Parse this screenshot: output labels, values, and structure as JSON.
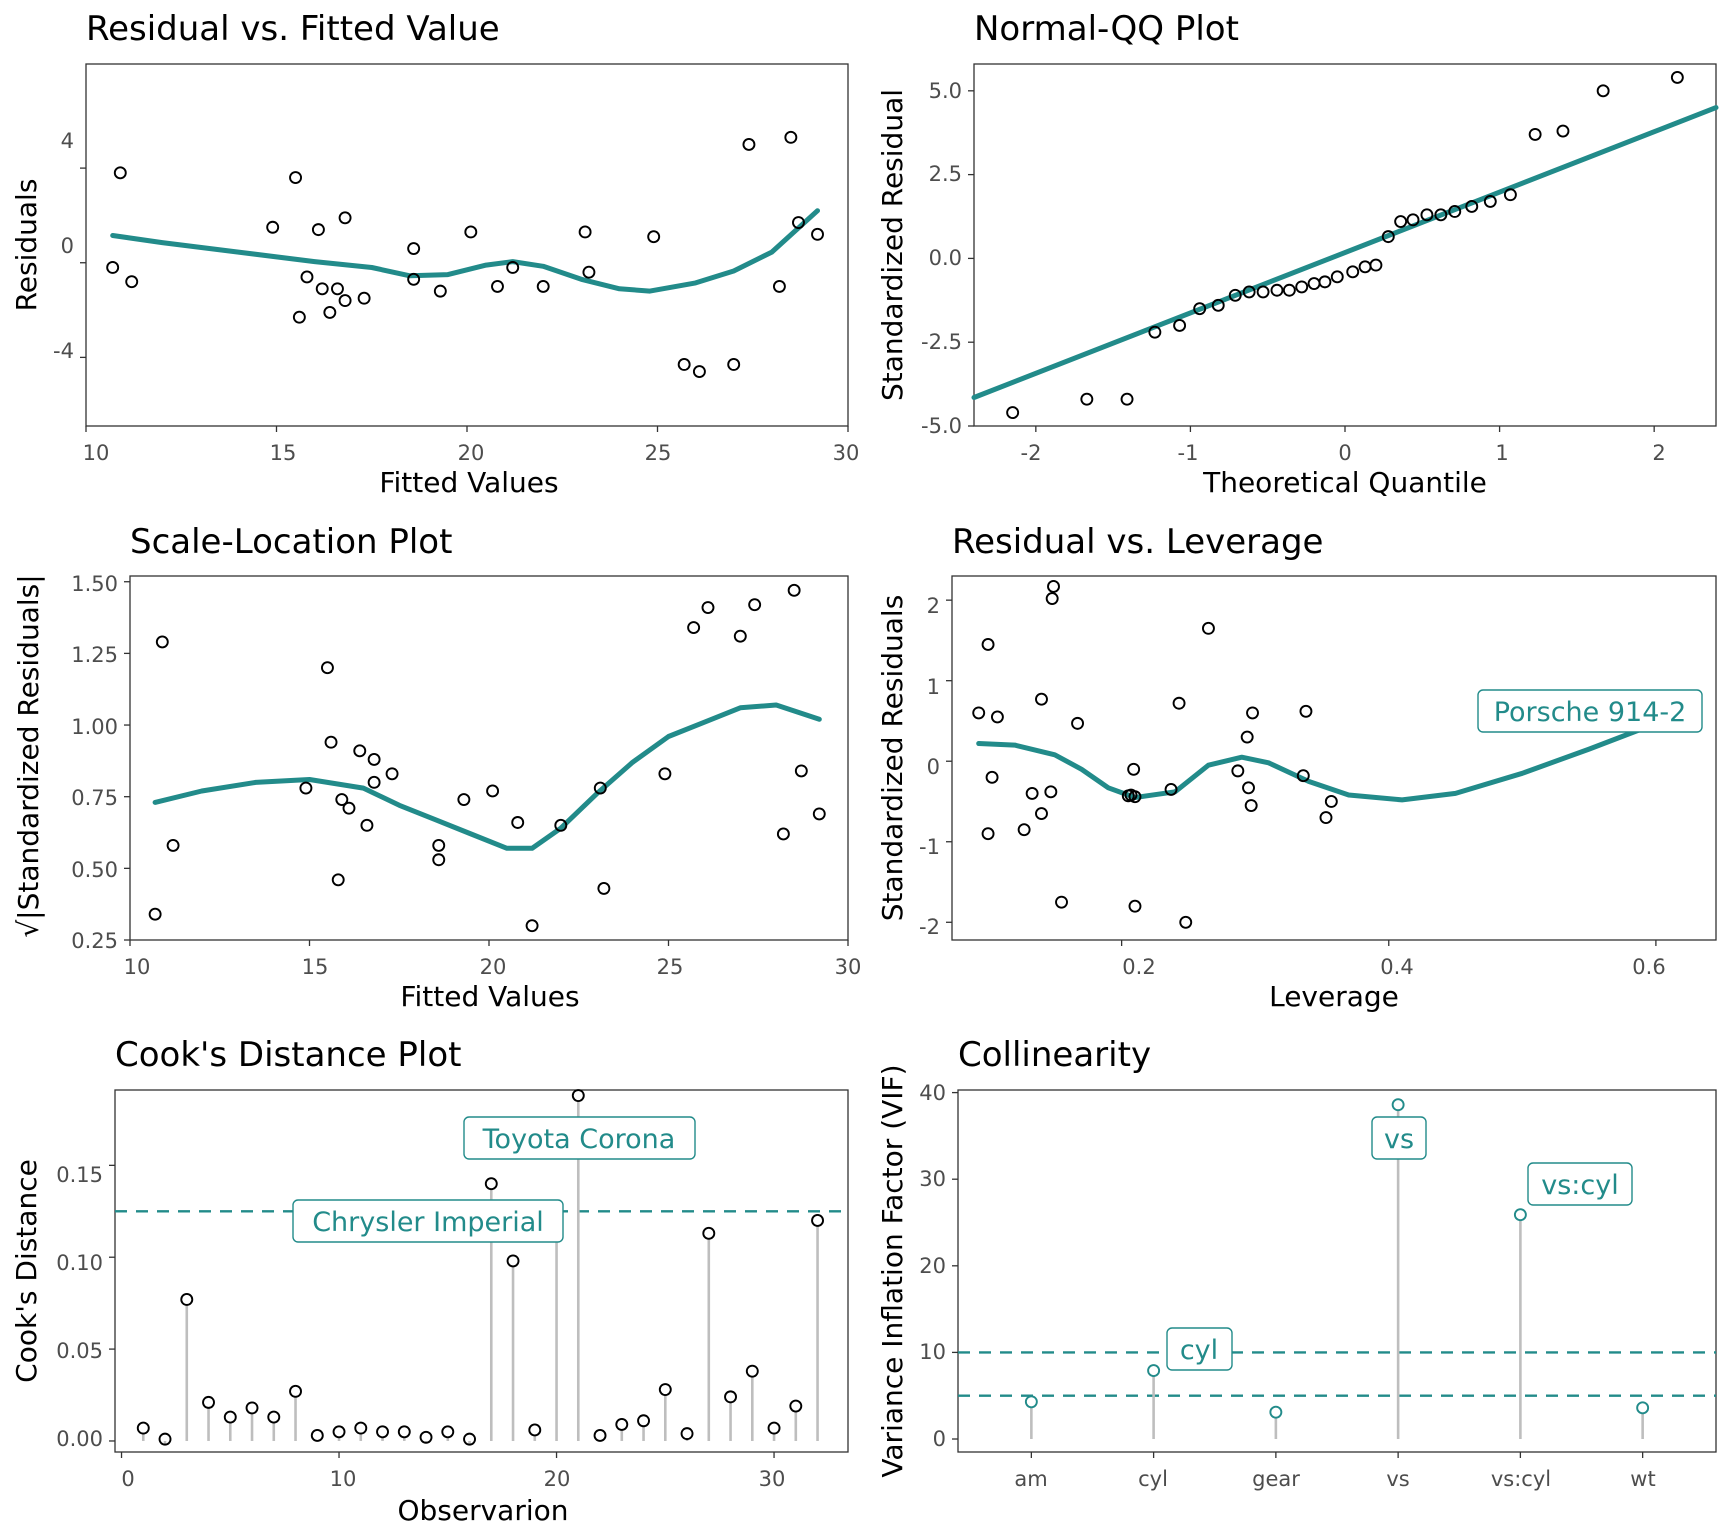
{
  "colors": {
    "accent": "#228b8a",
    "stem": "#bebebe",
    "point": "#000000",
    "frame": "#333333",
    "tick_text": "#4d4d4d"
  },
  "chart_data": [
    {
      "type": "scatter",
      "title": "Residual vs. Fitted Value",
      "xlabel": "Fitted Values",
      "ylabel": "Residuals",
      "xlim": [
        10,
        30
      ],
      "ylim": [
        -6.9,
        8.4
      ],
      "xticks": [
        "10",
        "15",
        "20",
        "25",
        "30"
      ],
      "yticks": [
        "-4",
        "0",
        "4"
      ],
      "points": [
        [
          10.7,
          -0.2
        ],
        [
          10.9,
          3.8
        ],
        [
          11.2,
          -0.8
        ],
        [
          14.9,
          1.5
        ],
        [
          15.5,
          3.6
        ],
        [
          15.6,
          -2.3
        ],
        [
          15.8,
          -0.6
        ],
        [
          16.1,
          1.4
        ],
        [
          16.2,
          -1.1
        ],
        [
          16.4,
          -2.1
        ],
        [
          16.6,
          -1.1
        ],
        [
          16.8,
          1.9
        ],
        [
          16.8,
          -1.6
        ],
        [
          17.3,
          -1.5
        ],
        [
          18.6,
          0.6
        ],
        [
          18.6,
          -0.7
        ],
        [
          19.3,
          -1.2
        ],
        [
          20.1,
          1.3
        ],
        [
          20.8,
          -1.0
        ],
        [
          21.2,
          -0.2
        ],
        [
          22.0,
          -1.0
        ],
        [
          23.1,
          1.3
        ],
        [
          23.2,
          -0.4
        ],
        [
          24.9,
          1.1
        ],
        [
          25.7,
          -4.3
        ],
        [
          26.1,
          -4.6
        ],
        [
          27.0,
          -4.3
        ],
        [
          27.4,
          5.0
        ],
        [
          28.2,
          -1.0
        ],
        [
          28.5,
          5.3
        ],
        [
          28.7,
          1.7
        ],
        [
          29.2,
          1.2
        ]
      ],
      "smooth": [
        [
          10.7,
          1.15
        ],
        [
          12,
          0.85
        ],
        [
          14,
          0.45
        ],
        [
          16,
          0.05
        ],
        [
          17.5,
          -0.2
        ],
        [
          18.5,
          -0.55
        ],
        [
          19.5,
          -0.5
        ],
        [
          20.5,
          -0.1
        ],
        [
          21.2,
          0.05
        ],
        [
          22,
          -0.15
        ],
        [
          23,
          -0.7
        ],
        [
          24,
          -1.1
        ],
        [
          24.8,
          -1.2
        ],
        [
          26,
          -0.85
        ],
        [
          27,
          -0.35
        ],
        [
          28,
          0.45
        ],
        [
          29.2,
          2.2
        ]
      ]
    },
    {
      "type": "scatter",
      "title": "Normal-QQ Plot",
      "xlabel": "Theoretical Quantile",
      "ylabel": "Standardized Residual",
      "xlim": [
        -2.4,
        2.4
      ],
      "ylim": [
        -5.0,
        5.8
      ],
      "xticks": [
        "-2",
        "-1",
        "0",
        "1",
        "2"
      ],
      "yticks": [
        "-5.0",
        "-2.5",
        "0.0",
        "2.5",
        "5.0"
      ],
      "points": [
        [
          -2.15,
          -4.6
        ],
        [
          -1.67,
          -4.2
        ],
        [
          -1.41,
          -4.2
        ],
        [
          -1.23,
          -2.2
        ],
        [
          -1.07,
          -2.0
        ],
        [
          -0.94,
          -1.5
        ],
        [
          -0.82,
          -1.4
        ],
        [
          -0.71,
          -1.1
        ],
        [
          -0.62,
          -1.0
        ],
        [
          -0.53,
          -1.0
        ],
        [
          -0.44,
          -0.95
        ],
        [
          -0.36,
          -0.95
        ],
        [
          -0.28,
          -0.85
        ],
        [
          -0.2,
          -0.75
        ],
        [
          -0.13,
          -0.7
        ],
        [
          -0.05,
          -0.55
        ],
        [
          0.05,
          -0.4
        ],
        [
          0.13,
          -0.25
        ],
        [
          0.2,
          -0.2
        ],
        [
          0.28,
          0.65
        ],
        [
          0.36,
          1.1
        ],
        [
          0.44,
          1.15
        ],
        [
          0.53,
          1.3
        ],
        [
          0.62,
          1.3
        ],
        [
          0.71,
          1.4
        ],
        [
          0.82,
          1.55
        ],
        [
          0.94,
          1.7
        ],
        [
          1.07,
          1.9
        ],
        [
          1.23,
          3.7
        ],
        [
          1.41,
          3.8
        ],
        [
          1.67,
          5.0
        ],
        [
          2.15,
          5.4
        ]
      ],
      "line": [
        [
          -2.4,
          -4.15
        ],
        [
          2.4,
          4.5
        ]
      ]
    },
    {
      "type": "scatter",
      "title": "Scale-Location Plot",
      "xlabel": "Fitted Values",
      "ylabel": "√|Standardized Residuals|",
      "xlim": [
        10,
        30
      ],
      "ylim": [
        0.25,
        1.52
      ],
      "xticks": [
        "10",
        "15",
        "20",
        "25",
        "30"
      ],
      "yticks": [
        "0.25",
        "0.50",
        "0.75",
        "1.00",
        "1.25",
        "1.50"
      ],
      "points": [
        [
          10.7,
          0.34
        ],
        [
          10.9,
          1.29
        ],
        [
          11.2,
          0.58
        ],
        [
          14.9,
          0.78
        ],
        [
          15.5,
          1.2
        ],
        [
          15.6,
          0.94
        ],
        [
          15.8,
          0.46
        ],
        [
          15.9,
          0.74
        ],
        [
          16.1,
          0.71
        ],
        [
          16.4,
          0.91
        ],
        [
          16.6,
          0.65
        ],
        [
          16.8,
          0.88
        ],
        [
          16.8,
          0.8
        ],
        [
          17.3,
          0.83
        ],
        [
          18.6,
          0.58
        ],
        [
          18.6,
          0.53
        ],
        [
          19.3,
          0.74
        ],
        [
          20.1,
          0.77
        ],
        [
          20.8,
          0.66
        ],
        [
          21.2,
          0.3
        ],
        [
          22.0,
          0.65
        ],
        [
          23.1,
          0.78
        ],
        [
          23.2,
          0.43
        ],
        [
          24.9,
          0.83
        ],
        [
          25.7,
          1.34
        ],
        [
          26.1,
          1.41
        ],
        [
          27.0,
          1.31
        ],
        [
          27.4,
          1.42
        ],
        [
          28.2,
          0.62
        ],
        [
          28.5,
          1.47
        ],
        [
          28.7,
          0.84
        ],
        [
          29.2,
          0.69
        ]
      ],
      "smooth": [
        [
          10.7,
          0.73
        ],
        [
          12,
          0.77
        ],
        [
          13.5,
          0.8
        ],
        [
          15,
          0.81
        ],
        [
          16.5,
          0.78
        ],
        [
          17.5,
          0.72
        ],
        [
          18.5,
          0.67
        ],
        [
          19.5,
          0.62
        ],
        [
          20.5,
          0.57
        ],
        [
          21.2,
          0.57
        ],
        [
          22,
          0.64
        ],
        [
          23,
          0.76
        ],
        [
          24,
          0.87
        ],
        [
          25,
          0.96
        ],
        [
          26,
          1.01
        ],
        [
          27,
          1.06
        ],
        [
          28,
          1.07
        ],
        [
          29.2,
          1.02
        ]
      ]
    },
    {
      "type": "scatter",
      "title": "Residual vs. Leverage",
      "xlabel": "Leverage",
      "ylabel": "Standardized Residuals",
      "xlim": [
        0.073,
        0.645
      ],
      "ylim": [
        -2.22,
        2.3
      ],
      "xticks": [
        "0.2",
        "0.4",
        "0.6"
      ],
      "yticks": [
        "-2",
        "-1",
        "0",
        "1",
        "2"
      ],
      "points": [
        [
          0.093,
          0.6
        ],
        [
          0.1,
          1.45
        ],
        [
          0.1,
          -0.9
        ],
        [
          0.103,
          -0.2
        ],
        [
          0.107,
          0.55
        ],
        [
          0.127,
          -0.85
        ],
        [
          0.133,
          -0.4
        ],
        [
          0.14,
          0.77
        ],
        [
          0.14,
          -0.65
        ],
        [
          0.147,
          -0.38
        ],
        [
          0.148,
          2.02
        ],
        [
          0.149,
          2.17
        ],
        [
          0.155,
          -1.75
        ],
        [
          0.167,
          0.47
        ],
        [
          0.205,
          -0.43
        ],
        [
          0.207,
          -0.42
        ],
        [
          0.209,
          -0.1
        ],
        [
          0.21,
          -0.44
        ],
        [
          0.21,
          -1.8
        ],
        [
          0.237,
          -0.35
        ],
        [
          0.243,
          0.72
        ],
        [
          0.248,
          -2.0
        ],
        [
          0.265,
          1.65
        ],
        [
          0.287,
          -0.12
        ],
        [
          0.294,
          0.3
        ],
        [
          0.295,
          -0.33
        ],
        [
          0.297,
          -0.55
        ],
        [
          0.298,
          0.6
        ],
        [
          0.336,
          -0.18
        ],
        [
          0.338,
          0.62
        ],
        [
          0.353,
          -0.7
        ],
        [
          0.357,
          -0.5
        ]
      ],
      "smooth": [
        [
          0.093,
          0.22
        ],
        [
          0.12,
          0.2
        ],
        [
          0.15,
          0.08
        ],
        [
          0.17,
          -0.1
        ],
        [
          0.19,
          -0.33
        ],
        [
          0.21,
          -0.45
        ],
        [
          0.24,
          -0.38
        ],
        [
          0.265,
          -0.05
        ],
        [
          0.29,
          0.05
        ],
        [
          0.31,
          -0.02
        ],
        [
          0.34,
          -0.25
        ],
        [
          0.37,
          -0.42
        ],
        [
          0.41,
          -0.48
        ],
        [
          0.45,
          -0.4
        ],
        [
          0.5,
          -0.15
        ],
        [
          0.55,
          0.15
        ],
        [
          0.605,
          0.5
        ]
      ],
      "annotations": [
        {
          "text": "Porsche 914-2"
        }
      ]
    },
    {
      "type": "bar",
      "title": "Cook's Distance Plot",
      "xlabel": "Observarion",
      "ylabel": "Cook's Distance",
      "xlim": [
        -0.3,
        33.4
      ],
      "ylim": [
        -0.006,
        0.191
      ],
      "xticks": [
        "0",
        "10",
        "20",
        "30"
      ],
      "yticks": [
        "0.00",
        "0.05",
        "0.10",
        "0.15"
      ],
      "threshold": 0.125,
      "values": [
        0.007,
        0.001,
        0.077,
        0.021,
        0.013,
        0.018,
        0.013,
        0.027,
        0.003,
        0.005,
        0.007,
        0.005,
        0.005,
        0.002,
        0.005,
        0.001,
        0.14,
        0.098,
        0.006,
        0.114,
        0.188,
        0.003,
        0.009,
        0.011,
        0.028,
        0.004,
        0.113,
        0.024,
        0.038,
        0.007,
        0.019,
        0.12
      ],
      "annotations": [
        {
          "text": "Toyota Corona"
        },
        {
          "text": "Chrysler Imperial"
        }
      ]
    },
    {
      "type": "bar",
      "title": "Collinearity",
      "xlabel": "",
      "ylabel": "Variance Inflation Factor (VIF)",
      "ylim": [
        -1.5,
        40.3
      ],
      "yticks": [
        "0",
        "10",
        "20",
        "30",
        "40"
      ],
      "thresholds": [
        10,
        5
      ],
      "categories": [
        "am",
        "cyl",
        "gear",
        "vs",
        "vs:cyl",
        "wt"
      ],
      "values": [
        4.3,
        7.9,
        3.1,
        38.6,
        25.9,
        3.6
      ],
      "annotations": [
        {
          "text": "vs"
        },
        {
          "text": "vs:cyl"
        },
        {
          "text": "cyl"
        }
      ]
    }
  ]
}
